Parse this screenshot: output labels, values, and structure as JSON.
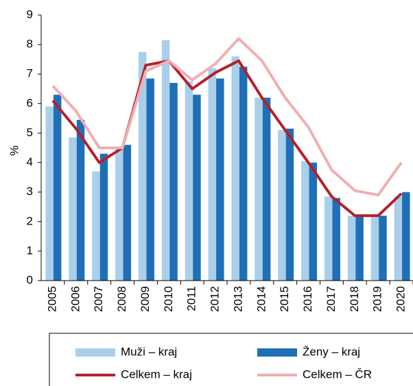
{
  "chart_data": {
    "type": "bar_line",
    "y_label": "%",
    "categories": [
      "2005",
      "2006",
      "2007",
      "2008",
      "2009",
      "2010",
      "2011",
      "2012",
      "2013",
      "2014",
      "2015",
      "2016",
      "2017",
      "2018",
      "2019",
      "2020"
    ],
    "ylim": [
      0,
      9
    ],
    "yticks": [
      0,
      1,
      2,
      3,
      4,
      5,
      6,
      7,
      8,
      9
    ],
    "series": [
      {
        "name": "Muži – kraj",
        "kind": "bar",
        "color": "#a9cfeb",
        "values": [
          5.9,
          4.85,
          3.7,
          4.45,
          7.75,
          8.15,
          6.75,
          7.2,
          7.6,
          6.2,
          5.1,
          4.05,
          2.85,
          2.2,
          2.15,
          2.85
        ]
      },
      {
        "name": "Ženy – kraj",
        "kind": "bar",
        "color": "#1f6fb6",
        "values": [
          6.3,
          5.45,
          4.3,
          4.6,
          6.85,
          6.7,
          6.3,
          6.85,
          7.25,
          6.2,
          5.15,
          4.0,
          2.8,
          2.2,
          2.2,
          3.0
        ]
      },
      {
        "name": "Celkem – kraj",
        "kind": "line",
        "color": "#b5202a",
        "values": [
          6.1,
          5.15,
          4.0,
          4.5,
          7.3,
          7.45,
          6.5,
          7.05,
          7.45,
          6.2,
          5.1,
          4.0,
          2.85,
          2.2,
          2.2,
          2.95
        ]
      },
      {
        "name": "Celkem – ČR",
        "kind": "line",
        "color": "#f0aeb1",
        "values": [
          6.6,
          5.75,
          4.5,
          4.5,
          7.1,
          7.45,
          6.8,
          7.35,
          8.2,
          7.45,
          6.2,
          5.2,
          3.75,
          3.05,
          2.9,
          4.0
        ]
      }
    ]
  }
}
